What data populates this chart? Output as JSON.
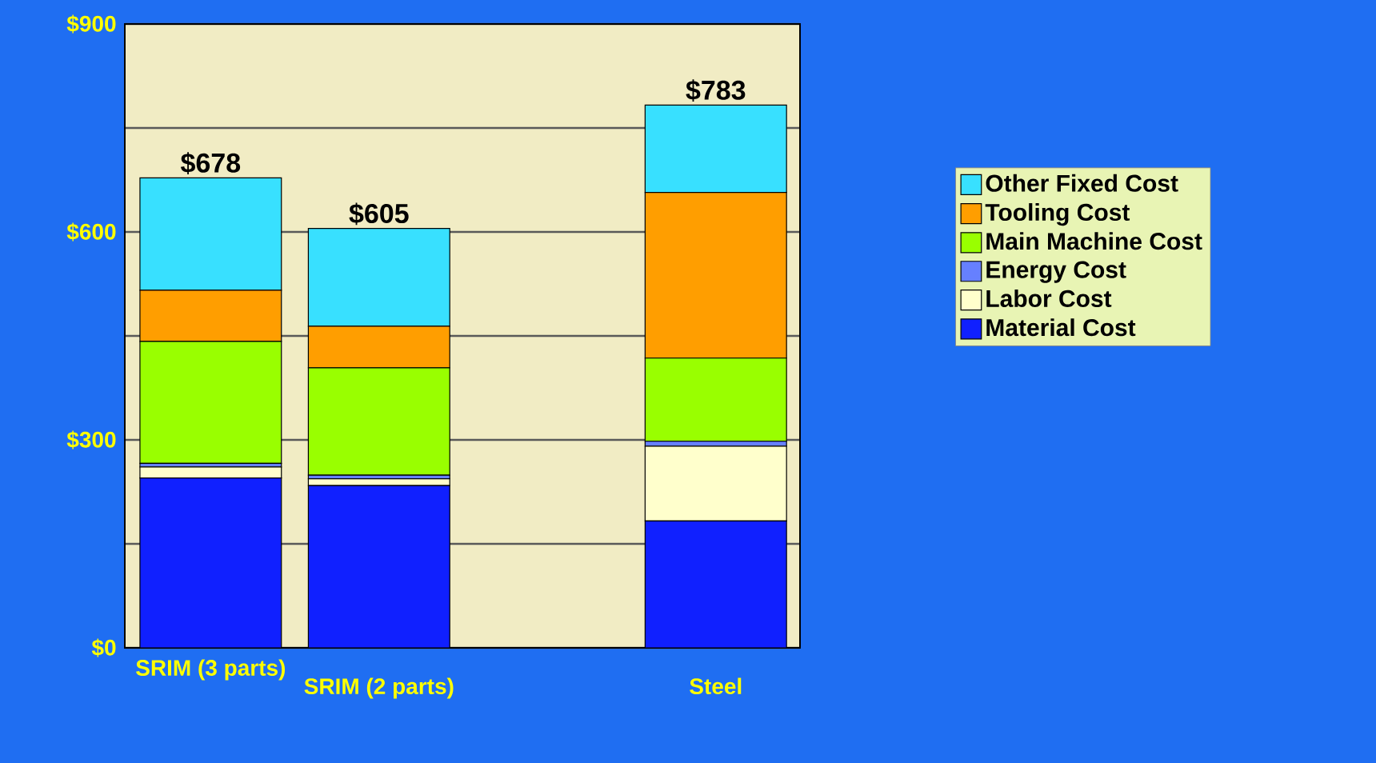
{
  "chart_data": {
    "type": "bar",
    "stacked": true,
    "categories": [
      "SRIM (3 parts)",
      "SRIM (2 parts)",
      null,
      "Steel"
    ],
    "series": [
      {
        "name": "Material Cost",
        "color": "#1020ff",
        "values": [
          245,
          234,
          null,
          183
        ]
      },
      {
        "name": "Labor Cost",
        "color": "#ffffcc",
        "values": [
          16,
          10,
          null,
          108
        ]
      },
      {
        "name": "Energy Cost",
        "color": "#6680ff",
        "values": [
          5,
          5,
          null,
          7
        ]
      },
      {
        "name": "Main Machine Cost",
        "color": "#99ff00",
        "values": [
          176,
          155,
          null,
          120
        ]
      },
      {
        "name": "Tooling Cost",
        "color": "#ff9e00",
        "values": [
          74,
          60,
          null,
          239
        ]
      },
      {
        "name": "Other Fixed Cost",
        "color": "#38e0ff",
        "values": [
          162,
          141,
          null,
          126
        ]
      }
    ],
    "totals": [
      "$678",
      "$605",
      null,
      "$783"
    ],
    "ylim": [
      0,
      900
    ],
    "yticks": [
      {
        "value": 0,
        "label": "$0"
      },
      {
        "value": 150,
        "label": null
      },
      {
        "value": 300,
        "label": "$300"
      },
      {
        "value": 450,
        "label": null
      },
      {
        "value": 600,
        "label": "$600"
      },
      {
        "value": 750,
        "label": null
      },
      {
        "value": 900,
        "label": "$900"
      }
    ],
    "grid": "y",
    "legend": "right"
  }
}
